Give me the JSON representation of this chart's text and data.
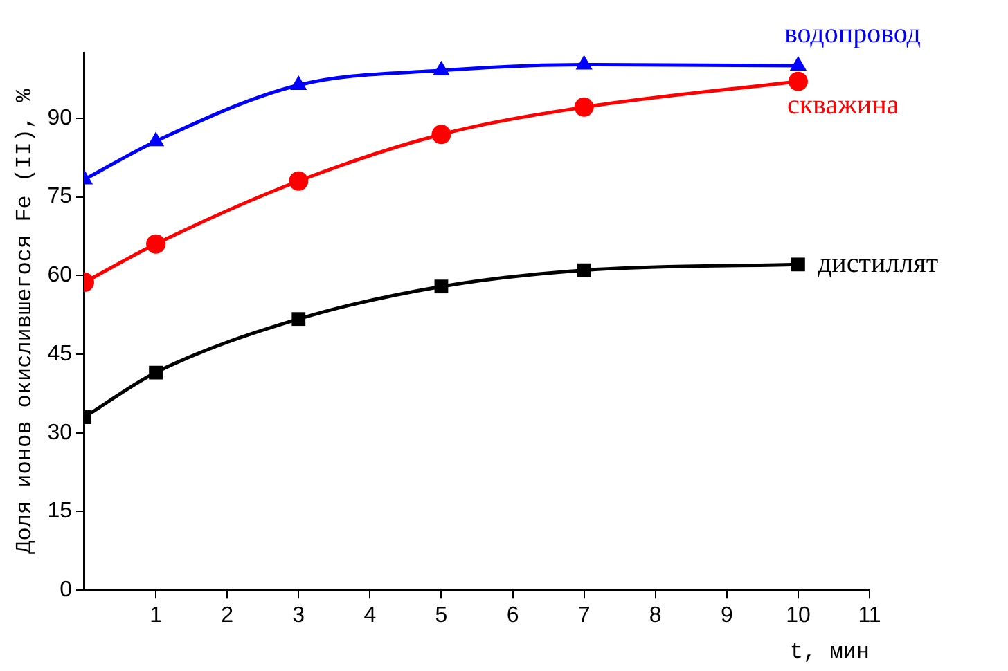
{
  "chart_data": {
    "type": "line",
    "xlabel": "t, мин",
    "ylabel": "Доля ионов окислившегося Fe (II), %",
    "xlim": [
      0,
      11
    ],
    "xticks": [
      1,
      2,
      3,
      4,
      5,
      6,
      7,
      8,
      9,
      10,
      11
    ],
    "ylim": [
      0,
      102.5
    ],
    "yticks": [
      0,
      15,
      30,
      45,
      60,
      75,
      90
    ],
    "grid": false,
    "legend": false,
    "line_style": "solid",
    "series": [
      {
        "name": "дистиллят",
        "color": "#000000",
        "marker": "square",
        "x": [
          0,
          1,
          3,
          5,
          7,
          10
        ],
        "values": [
          33,
          41.5,
          51.7,
          57.9,
          61,
          62.1
        ]
      },
      {
        "name": "скважина",
        "color": "#ff0000",
        "marker": "circle",
        "x": [
          0,
          1,
          3,
          5,
          7,
          10
        ],
        "values": [
          58.7,
          66,
          78,
          86.9,
          92.1,
          97
        ]
      },
      {
        "name": "водопровод",
        "color": "#0000ff",
        "marker": "triangle",
        "x": [
          0,
          1,
          3,
          5,
          7,
          10
        ],
        "values": [
          78.3,
          85.6,
          96.3,
          99.1,
          100.2,
          100
        ]
      }
    ]
  }
}
